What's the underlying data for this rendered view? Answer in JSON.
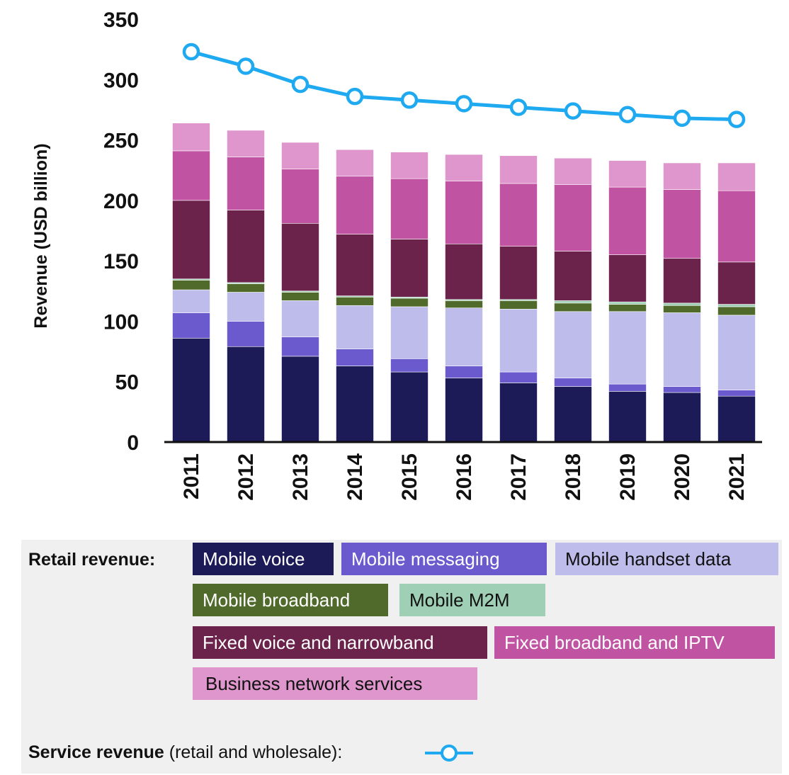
{
  "chart_data": {
    "type": "bar",
    "stacked": true,
    "categories": [
      "2011",
      "2012",
      "2013",
      "2014",
      "2015",
      "2016",
      "2017",
      "2018",
      "2019",
      "2020",
      "2021"
    ],
    "ylabel": "Revenue (USD billion)",
    "ylim": [
      0,
      350
    ],
    "yticks": [
      0,
      50,
      100,
      150,
      200,
      250,
      300,
      350
    ],
    "series": [
      {
        "name": "Mobile voice",
        "color": "#1c1a57",
        "values": [
          86,
          79,
          71,
          63,
          58,
          53,
          49,
          46,
          42,
          41,
          38
        ]
      },
      {
        "name": "Mobile messaging",
        "color": "#6a5acd",
        "values": [
          21,
          21,
          16,
          14,
          11,
          10,
          9,
          7,
          6,
          5,
          5
        ]
      },
      {
        "name": "Mobile handset data",
        "color": "#bdbceb",
        "values": [
          19,
          24,
          30,
          36,
          43,
          48,
          52,
          55,
          60,
          61,
          62
        ]
      },
      {
        "name": "Mobile broadband",
        "color": "#4f6a2a",
        "values": [
          8,
          7,
          7,
          7,
          7,
          6,
          7,
          7,
          6,
          6,
          7
        ]
      },
      {
        "name": "Mobile M2M",
        "color": "#9fd0b5",
        "values": [
          1,
          1,
          1,
          1,
          1,
          1,
          1,
          2,
          2,
          2,
          2
        ]
      },
      {
        "name": "Fixed voice and narrowband",
        "color": "#6b224b",
        "values": [
          65,
          60,
          56,
          51,
          48,
          46,
          44,
          41,
          39,
          37,
          35
        ]
      },
      {
        "name": "Fixed broadband and IPTV",
        "color": "#c054a3",
        "values": [
          41,
          44,
          45,
          48,
          50,
          52,
          52,
          55,
          56,
          57,
          59
        ]
      },
      {
        "name": "Business network services",
        "color": "#df96cc",
        "values": [
          23,
          22,
          22,
          22,
          22,
          22,
          23,
          22,
          22,
          22,
          23
        ]
      }
    ],
    "line_series": {
      "name": "Service revenue",
      "color": "#1ea9f0",
      "values": [
        323,
        311,
        296,
        286,
        283,
        280,
        277,
        274,
        271,
        268,
        267
      ]
    }
  },
  "legend": {
    "retail_heading": "Retail revenue:",
    "chips": [
      {
        "label": "Mobile voice",
        "bg": "#1c1a57",
        "fg": "#ffffff"
      },
      {
        "label": "Mobile messaging",
        "bg": "#6a5acd",
        "fg": "#ffffff"
      },
      {
        "label": "Mobile handset data",
        "bg": "#bdbceb",
        "fg": "#111111"
      },
      {
        "label": "Mobile broadband",
        "bg": "#4f6a2a",
        "fg": "#ffffff"
      },
      {
        "label": "Mobile M2M",
        "bg": "#9fd0b5",
        "fg": "#111111"
      },
      {
        "label": "Fixed voice and narrowband",
        "bg": "#6b224b",
        "fg": "#ffffff"
      },
      {
        "label": "Fixed broadband and IPTV",
        "bg": "#c054a3",
        "fg": "#ffffff"
      },
      {
        "label": "Business network services",
        "bg": "#df96cc",
        "fg": "#111111"
      }
    ],
    "service_bold": "Service revenue",
    "service_rest": " (retail and wholesale):"
  }
}
